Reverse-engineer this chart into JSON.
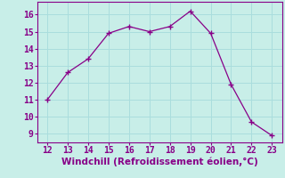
{
  "x": [
    12,
    13,
    14,
    15,
    16,
    17,
    18,
    19,
    20,
    21,
    22,
    23
  ],
  "y": [
    11.0,
    12.6,
    13.4,
    14.9,
    15.3,
    15.0,
    15.3,
    16.2,
    14.9,
    11.9,
    9.7,
    8.9
  ],
  "xlabel": "Windchill (Refroidissement éolien,°C)",
  "xlim": [
    11.5,
    23.5
  ],
  "ylim": [
    8.5,
    16.75
  ],
  "yticks": [
    9,
    10,
    11,
    12,
    13,
    14,
    15,
    16
  ],
  "xticks": [
    12,
    13,
    14,
    15,
    16,
    17,
    18,
    19,
    20,
    21,
    22,
    23
  ],
  "line_color": "#880088",
  "marker": "+",
  "bg_color": "#c8eee8",
  "grid_color": "#aadddd",
  "label_color": "#880088",
  "font_size": 7.0,
  "xlabel_size": 7.5
}
